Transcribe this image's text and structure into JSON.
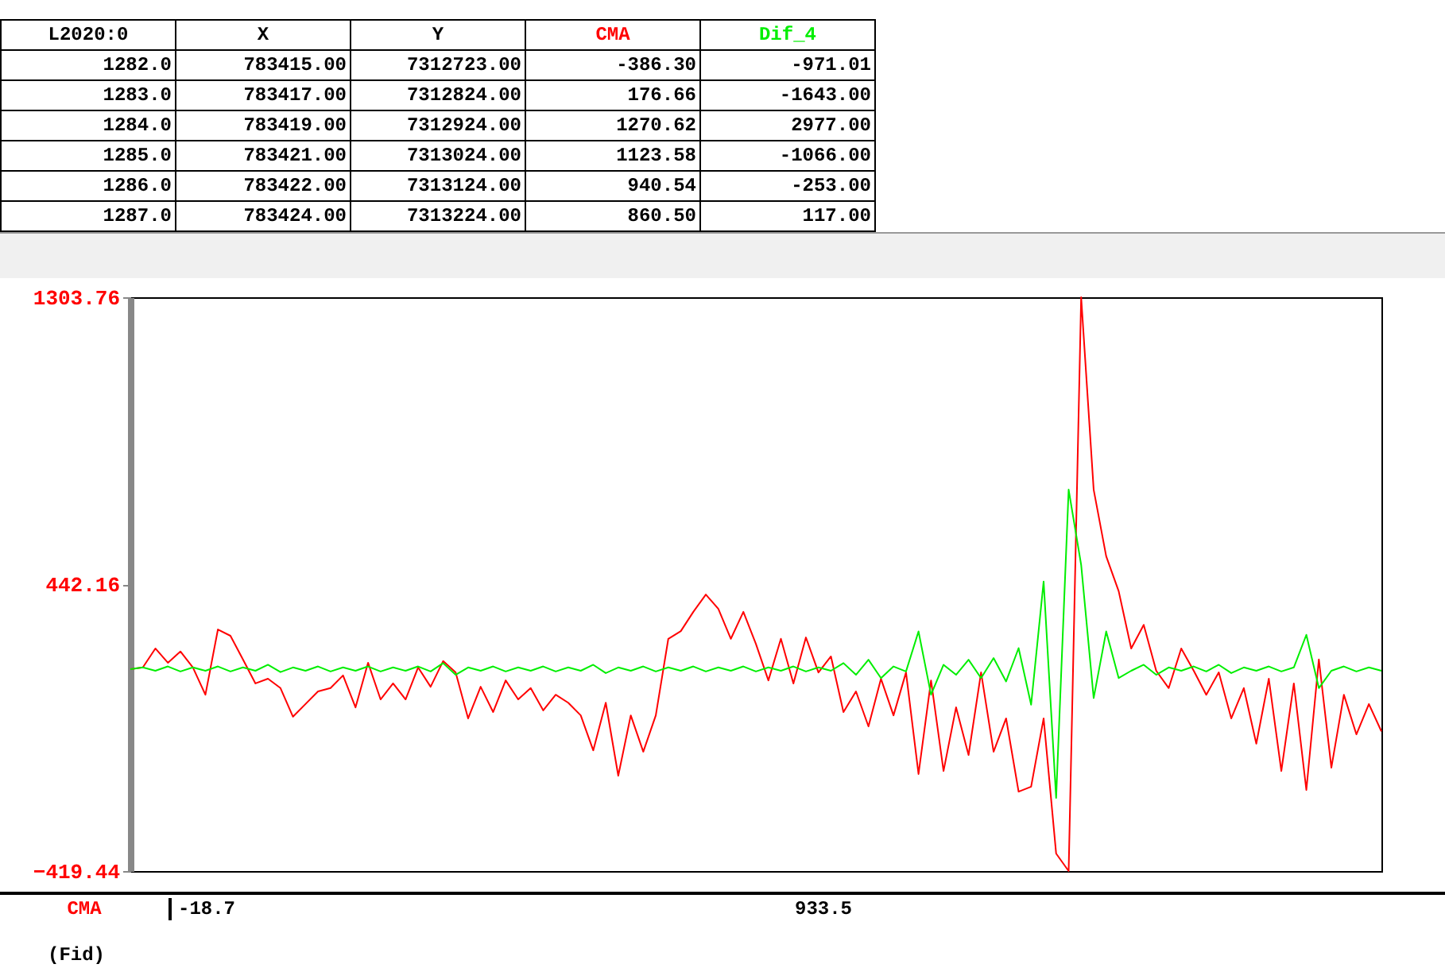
{
  "chart_data": {
    "type": "line",
    "categories": [
      null,
      null,
      null,
      null,
      null,
      null,
      null,
      null,
      null,
      null,
      null,
      null,
      null,
      null,
      null,
      null,
      null,
      null,
      null,
      null,
      null,
      null,
      null,
      null,
      null,
      null,
      null,
      null,
      null,
      null,
      null,
      null,
      null,
      null,
      null,
      null,
      null,
      null,
      null,
      null,
      null,
      null,
      null,
      null,
      null,
      null,
      null,
      null,
      null,
      null,
      null,
      null,
      null,
      null,
      null,
      null,
      null,
      null,
      null,
      null,
      null,
      null,
      null,
      null,
      null,
      null,
      null,
      null,
      null,
      null,
      null,
      null,
      null,
      null,
      null,
      null,
      null,
      null,
      null,
      null,
      null,
      null,
      null,
      null,
      null,
      null,
      null,
      null,
      null,
      null,
      null,
      null,
      null,
      null,
      null,
      null,
      null,
      null,
      null,
      null,
      null
    ],
    "series": [
      {
        "name": "CMA",
        "color": "#ff0000",
        "values": [
          187,
          192,
          249,
          206,
          240,
          192,
          110,
          306,
          287,
          216,
          144,
          158,
          130,
          44,
          82,
          120,
          130,
          168,
          72,
          206,
          96,
          144,
          96,
          192,
          134,
          211,
          177,
          39,
          134,
          58,
          153,
          96,
          130,
          63,
          110,
          86,
          48,
          -57,
          86,
          -133,
          48,
          -61,
          48,
          278,
          301,
          359,
          411,
          368,
          278,
          359,
          263,
          153,
          278,
          144,
          282,
          177,
          225,
          58,
          120,
          15,
          158,
          48,
          177,
          -128,
          153,
          -119,
          72,
          -71,
          177,
          -61,
          39,
          -181,
          -166,
          39,
          -367,
          -419.44,
          1303.76,
          726,
          526,
          421,
          249,
          320,
          182,
          130,
          249,
          182,
          110,
          177,
          39,
          130,
          -37,
          158,
          -119,
          144,
          -176,
          216,
          -109,
          110,
          -9,
          82,
          0
        ]
      },
      {
        "name": "Dif_4",
        "color": "#00ee00",
        "values": [
          187,
          192,
          182,
          195,
          180,
          192,
          182,
          195,
          180,
          192,
          182,
          200,
          178,
          192,
          182,
          195,
          180,
          192,
          182,
          195,
          180,
          192,
          182,
          195,
          180,
          205,
          170,
          192,
          182,
          195,
          180,
          192,
          182,
          195,
          180,
          192,
          182,
          200,
          175,
          192,
          182,
          195,
          180,
          192,
          182,
          195,
          180,
          192,
          182,
          195,
          180,
          192,
          182,
          195,
          180,
          192,
          182,
          205,
          170,
          215,
          160,
          195,
          180,
          300,
          110,
          200,
          170,
          215,
          160,
          220,
          150,
          250,
          80,
          450,
          -200,
          726,
          500,
          100,
          300,
          160,
          182,
          200,
          170,
          192,
          182,
          195,
          180,
          200,
          175,
          192,
          182,
          195,
          180,
          192,
          290,
          130,
          182,
          195,
          180,
          192,
          182
        ]
      }
    ],
    "ylim": [
      -419.44,
      1303.76
    ],
    "yticks": [
      -419.44,
      442.16,
      1303.76
    ],
    "tick_labels": "y",
    "line_style": "solid",
    "annotations": [
      "L2020:0",
      "X",
      "Y",
      "1282.0",
      "783415.00",
      "7312723.00",
      "-386.30",
      "-971.01",
      "1283.0",
      "783417.00",
      "7312824.00",
      "176.66",
      "-1643.00",
      "1284.0",
      "783419.00",
      "7312924.00",
      "1270.62",
      "2977.00",
      "1285.0",
      "783421.00",
      "7313024.00",
      "1123.58",
      "-1066.00",
      "1286.0",
      "783422.00",
      "7313124.00",
      "940.54",
      "-253.00",
      "1287.0",
      "783424.00",
      "7313224.00",
      "860.50",
      "117.00",
      "-18.7",
      "933.5",
      "(Fid)"
    ]
  }
}
